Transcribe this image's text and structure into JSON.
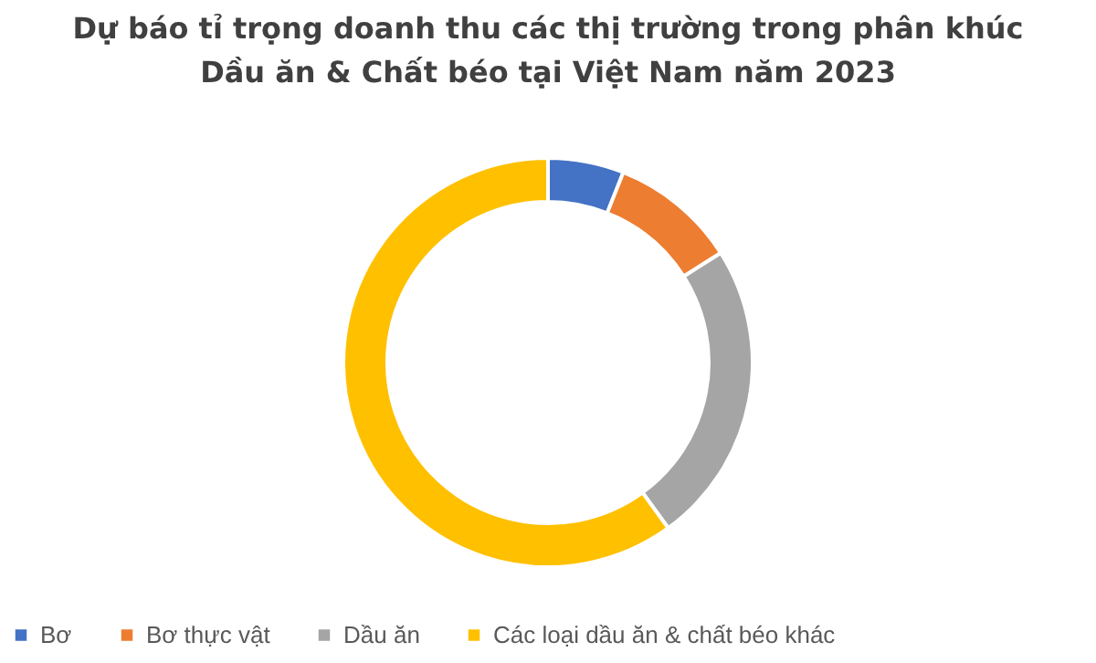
{
  "chart_data": {
    "type": "donut",
    "title": "Dự báo tỉ trọng doanh thu các thị trường trong phân khúc Dầu ăn & Chất béo tại Việt Nam năm 2023",
    "categories": [
      "Bơ",
      "Bơ thực vật",
      "Dầu ăn",
      "Các loại dầu ăn & chất béo khác"
    ],
    "values": [
      6,
      10,
      24,
      60
    ],
    "colors": [
      "#4472c4",
      "#ed7d31",
      "#a5a5a5",
      "#ffc000"
    ],
    "legend": "bottom"
  }
}
